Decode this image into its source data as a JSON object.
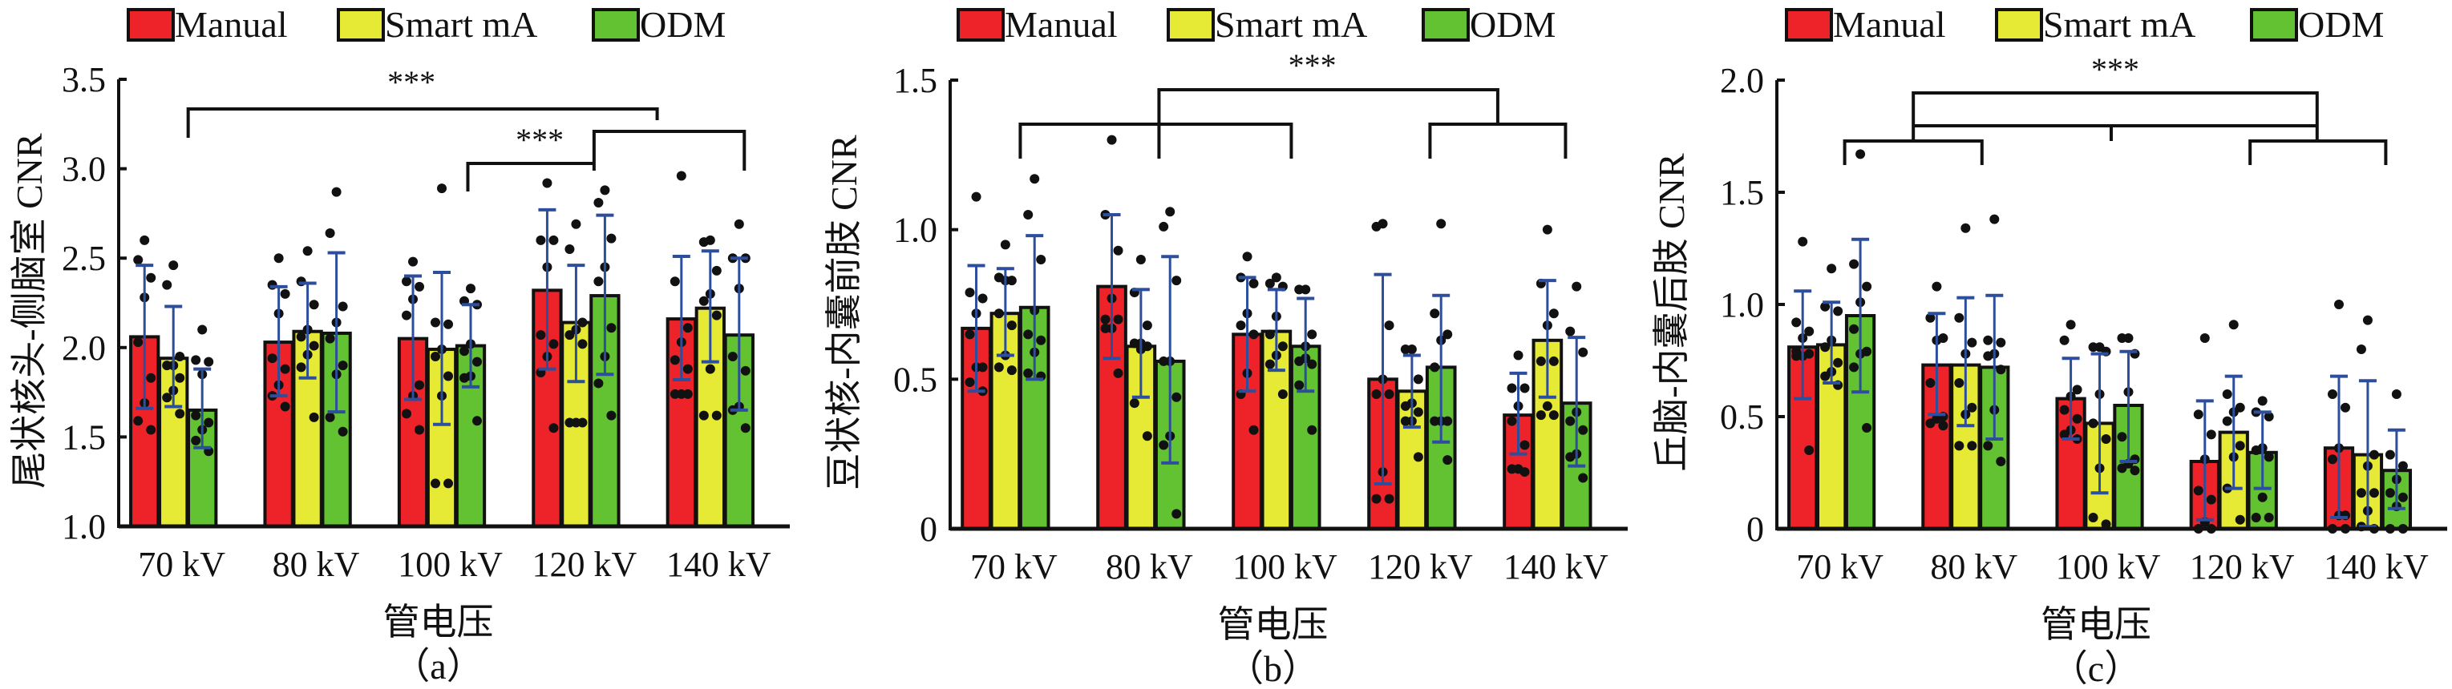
{
  "legend": [
    {
      "name": "Manual",
      "color": "#ee2329"
    },
    {
      "name": "Smart mA",
      "color": "#e6ea35"
    },
    {
      "name": "ODM",
      "color": "#62c232"
    }
  ],
  "colors": {
    "error_bar": "#2c4e9c",
    "point": "#111111",
    "axis": "#111111"
  },
  "chart_data": [
    {
      "type": "bar",
      "panel_label": "（a）",
      "ylabel": "尾状核头-侧脑室 CNR",
      "xlabel": "管电压",
      "categories": [
        "70 kV",
        "80 kV",
        "100 kV",
        "120 kV",
        "140 kV"
      ],
      "ylim": [
        1.0,
        3.5
      ],
      "yticks": [
        1.0,
        1.5,
        2.0,
        2.5,
        3.0,
        3.5
      ],
      "ytick_labels": [
        "1.0",
        "1.5",
        "2.0",
        "2.5",
        "3.0",
        "3.5"
      ],
      "series": [
        {
          "name": "Manual",
          "values": [
            2.06,
            2.03,
            2.05,
            2.32,
            2.16
          ],
          "err_low": [
            1.66,
            1.73,
            1.71,
            1.88,
            1.82
          ],
          "err_high": [
            2.46,
            2.34,
            2.4,
            2.77,
            2.51
          ]
        },
        {
          "name": "Smart mA",
          "values": [
            1.94,
            2.09,
            1.99,
            2.14,
            2.22
          ],
          "err_low": [
            1.67,
            1.83,
            1.57,
            1.81,
            1.92
          ],
          "err_high": [
            2.23,
            2.36,
            2.42,
            2.46,
            2.54
          ]
        },
        {
          "name": "ODM",
          "values": [
            1.65,
            2.08,
            2.01,
            2.29,
            2.07
          ],
          "err_low": [
            1.44,
            1.64,
            1.78,
            1.85,
            1.65
          ],
          "err_high": [
            1.88,
            2.53,
            2.24,
            2.74,
            2.5
          ]
        }
      ],
      "points": [
        [
          [
            2.6,
            2.49,
            2.39,
            2.28,
            2.03,
            1.83,
            1.69,
            1.59,
            1.54
          ],
          [
            2.46,
            2.35,
            1.95,
            1.9,
            1.9,
            1.83,
            1.76,
            1.72,
            1.63
          ],
          [
            2.1,
            1.93,
            1.92,
            1.85,
            1.62,
            1.58,
            1.54,
            1.48,
            1.42
          ]
        ],
        [
          [
            2.5,
            2.35,
            2.3,
            2.19,
            1.94,
            1.88,
            1.79,
            1.73,
            1.67
          ],
          [
            2.54,
            2.37,
            2.24,
            2.1,
            2.06,
            2.01,
            1.96,
            1.89,
            1.61
          ],
          [
            2.87,
            2.64,
            2.23,
            2.14,
            2.05,
            1.9,
            1.85,
            1.61,
            1.53
          ]
        ],
        [
          [
            2.48,
            2.37,
            2.34,
            2.27,
            2.18,
            1.79,
            1.73,
            1.63,
            1.54
          ],
          [
            2.89,
            2.14,
            2.13,
            1.99,
            1.95,
            1.84,
            1.73,
            1.24,
            1.24
          ],
          [
            2.33,
            2.26,
            2.24,
            2.02,
            1.98,
            1.92,
            1.84,
            1.83,
            1.59
          ]
        ],
        [
          [
            2.92,
            2.6,
            2.6,
            2.45,
            2.07,
            2.02,
            1.95,
            1.86,
            1.55
          ],
          [
            2.69,
            2.55,
            2.14,
            2.1,
            2.07,
            2.02,
            1.58,
            1.58,
            1.58
          ],
          [
            2.88,
            2.81,
            2.61,
            2.45,
            2.37,
            2.11,
            1.95,
            1.8,
            1.62
          ]
        ],
        [
          [
            2.96,
            2.37,
            2.11,
            2.03,
            1.93,
            1.88,
            1.74,
            1.74,
            1.74
          ],
          [
            2.6,
            2.59,
            2.43,
            2.3,
            2.26,
            2.18,
            1.88,
            1.62,
            1.62
          ],
          [
            2.69,
            2.5,
            2.5,
            2.33,
            1.95,
            1.87,
            1.67,
            1.65,
            1.55
          ]
        ]
      ],
      "brackets": [
        {
          "groups": [
            "70 kV",
            "120-140 kV"
          ],
          "label": "***"
        },
        {
          "groups": [
            "100 kV",
            "120 kV+140 kV"
          ],
          "label": "***"
        }
      ]
    },
    {
      "type": "bar",
      "panel_label": "（b）",
      "ylabel": "豆状核-内囊前肢 CNR",
      "xlabel": "管电压",
      "categories": [
        "70 kV",
        "80 kV",
        "100 kV",
        "120 kV",
        "140 kV"
      ],
      "ylim": [
        0,
        1.5
      ],
      "yticks": [
        0,
        0.5,
        1.0,
        1.5
      ],
      "ytick_labels": [
        "0",
        "0.5",
        "1.0",
        "1.5"
      ],
      "series": [
        {
          "name": "Manual",
          "values": [
            0.67,
            0.81,
            0.65,
            0.5,
            0.38
          ],
          "err_low": [
            0.46,
            0.57,
            0.46,
            0.15,
            0.25
          ],
          "err_high": [
            0.88,
            1.05,
            0.84,
            0.85,
            0.52
          ]
        },
        {
          "name": "Smart mA",
          "values": [
            0.72,
            0.61,
            0.66,
            0.46,
            0.63
          ],
          "err_low": [
            0.58,
            0.44,
            0.53,
            0.34,
            0.44
          ],
          "err_high": [
            0.87,
            0.8,
            0.8,
            0.58,
            0.83
          ]
        },
        {
          "name": "ODM",
          "values": [
            0.74,
            0.56,
            0.61,
            0.54,
            0.42
          ],
          "err_low": [
            0.5,
            0.22,
            0.46,
            0.29,
            0.21
          ],
          "err_high": [
            0.98,
            0.91,
            0.77,
            0.78,
            0.64
          ]
        }
      ],
      "points": [
        [
          [
            1.11,
            0.79,
            0.77,
            0.72,
            0.65,
            0.54,
            0.54,
            0.49,
            0.46
          ],
          [
            0.95,
            0.84,
            0.83,
            0.83,
            0.72,
            0.68,
            0.58,
            0.54,
            0.53
          ],
          [
            1.17,
            1.05,
            0.9,
            0.73,
            0.65,
            0.63,
            0.59,
            0.52,
            0.51
          ]
        ],
        [
          [
            1.3,
            1.05,
            0.93,
            0.77,
            0.7,
            0.7,
            0.67,
            0.67,
            0.52
          ],
          [
            0.9,
            0.79,
            0.68,
            0.62,
            0.62,
            0.61,
            0.6,
            0.42,
            0.31
          ],
          [
            1.06,
            1.01,
            0.83,
            0.56,
            0.56,
            0.44,
            0.31,
            0.28,
            0.05
          ]
        ],
        [
          [
            0.91,
            0.84,
            0.82,
            0.72,
            0.68,
            0.65,
            0.52,
            0.45,
            0.33
          ],
          [
            0.84,
            0.82,
            0.81,
            0.71,
            0.65,
            0.61,
            0.58,
            0.55,
            0.45
          ],
          [
            0.8,
            0.8,
            0.65,
            0.61,
            0.56,
            0.55,
            0.57,
            0.48,
            0.33
          ]
        ],
        [
          [
            1.02,
            1.01,
            0.68,
            0.5,
            0.45,
            0.45,
            0.19,
            0.1,
            0.1
          ],
          [
            0.6,
            0.6,
            0.5,
            0.42,
            0.41,
            0.39,
            0.36,
            0.36,
            0.24
          ],
          [
            1.02,
            0.72,
            0.65,
            0.63,
            0.54,
            0.36,
            0.36,
            0.36,
            0.23
          ]
        ],
        [
          [
            0.58,
            0.47,
            0.47,
            0.41,
            0.36,
            0.28,
            0.2,
            0.2,
            0.19
          ],
          [
            1.0,
            0.82,
            0.72,
            0.68,
            0.56,
            0.56,
            0.41,
            0.38,
            0.38
          ],
          [
            0.81,
            0.66,
            0.59,
            0.39,
            0.36,
            0.33,
            0.25,
            0.24,
            0.17
          ]
        ]
      ],
      "brackets": [
        {
          "groups": [
            "70-100 kV",
            "120-140 kV"
          ],
          "label": "***"
        }
      ]
    },
    {
      "type": "bar",
      "panel_label": "（c）",
      "ylabel": "丘脑-内囊后肢 CNR",
      "xlabel": "管电压",
      "categories": [
        "70 kV",
        "80 kV",
        "100 kV",
        "120 kV",
        "140 kV"
      ],
      "ylim": [
        0,
        2.0
      ],
      "yticks": [
        0,
        0.5,
        1.0,
        1.5,
        2.0
      ],
      "ytick_labels": [
        "0",
        "0.5",
        "1.0",
        "1.5",
        "2.0"
      ],
      "series": [
        {
          "name": "Manual",
          "values": [
            0.81,
            0.73,
            0.58,
            0.3,
            0.36
          ],
          "err_low": [
            0.58,
            0.51,
            0.4,
            0.04,
            0.05
          ],
          "err_high": [
            1.06,
            0.96,
            0.76,
            0.57,
            0.68
          ]
        },
        {
          "name": "Smart mA",
          "values": [
            0.82,
            0.73,
            0.47,
            0.43,
            0.33
          ],
          "err_low": [
            0.65,
            0.46,
            0.16,
            0.18,
            0.01
          ],
          "err_high": [
            1.01,
            1.03,
            0.78,
            0.68,
            0.66
          ]
        },
        {
          "name": "ODM",
          "values": [
            0.95,
            0.72,
            0.55,
            0.34,
            0.26
          ],
          "err_low": [
            0.61,
            0.4,
            0.3,
            0.18,
            0.09
          ],
          "err_high": [
            1.29,
            1.04,
            0.79,
            0.52,
            0.44
          ]
        }
      ],
      "points": [
        [
          [
            1.28,
            0.92,
            0.88,
            0.85,
            0.79,
            0.78,
            0.77,
            0.77,
            0.35
          ],
          [
            1.16,
            0.99,
            0.97,
            0.84,
            0.81,
            0.74,
            0.7,
            0.68,
            0.64
          ],
          [
            1.67,
            1.18,
            1.08,
            1.01,
            0.89,
            0.79,
            0.78,
            0.72,
            0.45
          ]
        ],
        [
          [
            1.08,
            0.94,
            0.85,
            0.84,
            0.65,
            0.5,
            0.49,
            0.47,
            0.46
          ],
          [
            1.34,
            0.94,
            0.83,
            0.78,
            0.65,
            0.54,
            0.51,
            0.37,
            0.37
          ],
          [
            1.38,
            0.84,
            0.83,
            0.78,
            0.77,
            0.71,
            0.53,
            0.37,
            0.3
          ]
        ],
        [
          [
            0.91,
            0.84,
            0.62,
            0.59,
            0.53,
            0.49,
            0.44,
            0.42,
            0.4
          ],
          [
            0.81,
            0.81,
            0.79,
            0.6,
            0.47,
            0.4,
            0.27,
            0.05,
            0.02
          ],
          [
            0.85,
            0.85,
            0.78,
            0.61,
            0.41,
            0.31,
            0.29,
            0.27,
            0.26
          ]
        ],
        [
          [
            0.85,
            0.51,
            0.42,
            0.31,
            0.17,
            0.13,
            0.03,
            0.0,
            0.0
          ],
          [
            0.91,
            0.6,
            0.54,
            0.52,
            0.48,
            0.37,
            0.32,
            0.18,
            0.04
          ],
          [
            0.57,
            0.52,
            0.5,
            0.36,
            0.35,
            0.32,
            0.14,
            0.05,
            0.05
          ]
        ],
        [
          [
            1.0,
            0.6,
            0.54,
            0.36,
            0.31,
            0.06,
            0.06,
            0.0,
            0.0
          ],
          [
            0.93,
            0.8,
            0.33,
            0.28,
            0.16,
            0.16,
            0.08,
            0.01,
            0.0
          ],
          [
            0.6,
            0.33,
            0.28,
            0.22,
            0.16,
            0.14,
            0.1,
            0.0,
            0.0
          ]
        ]
      ],
      "brackets": [
        {
          "groups": [
            "70-80 kV",
            "100 kV",
            "120-140 kV"
          ],
          "label": "***"
        }
      ]
    }
  ]
}
